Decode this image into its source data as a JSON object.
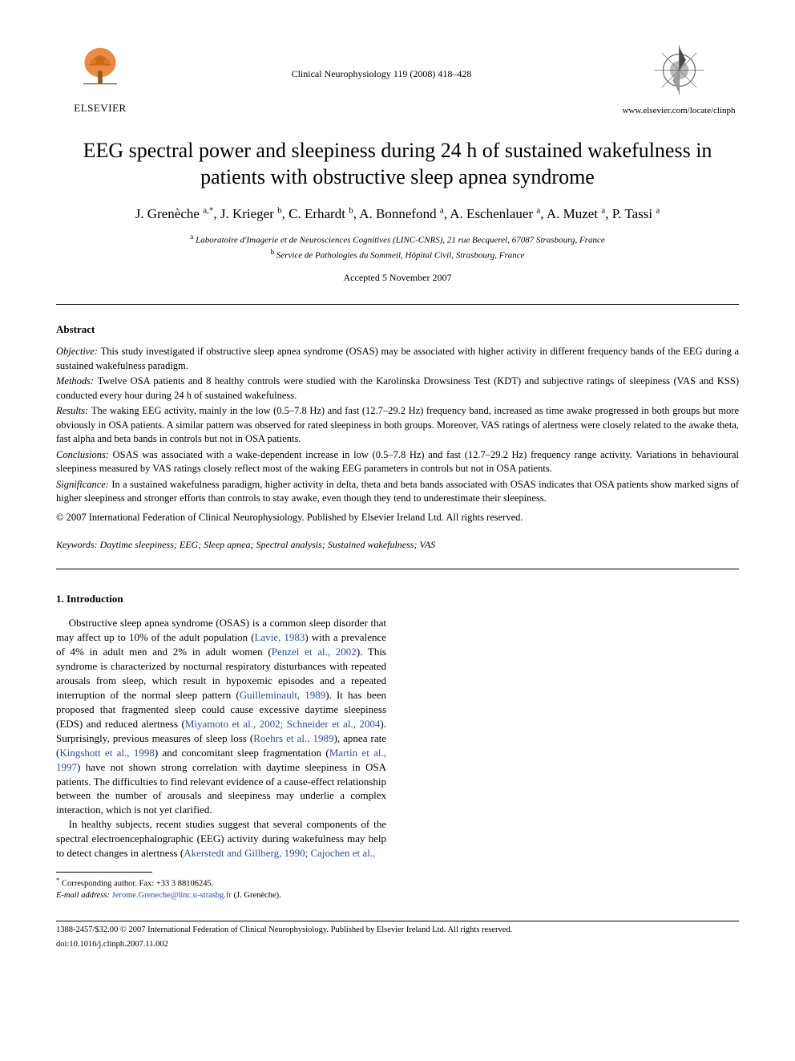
{
  "header": {
    "publisher_name": "ELSEVIER",
    "journal_citation": "Clinical Neurophysiology 119 (2008) 418–428",
    "journal_url": "www.elsevier.com/locate/clinph"
  },
  "title": "EEG spectral power and sleepiness during 24 h of sustained wakefulness in patients with obstructive sleep apnea syndrome",
  "authors_html": "J. Grenèche <sup>a,*</sup>, J. Krieger <sup>b</sup>, C. Erhardt <sup>b</sup>, A. Bonnefond <sup>a</sup>, A. Eschenlauer <sup>a</sup>, A. Muzet <sup>a</sup>, P. Tassi <sup>a</sup>",
  "affiliations": {
    "a": "Laboratoire d'Imagerie et de Neurosciences Cognitives (LINC-CNRS), 21 rue Becquerel, 67087 Strasbourg, France",
    "b": "Service de Pathologies du Sommeil, Hôpital Civil, Strasbourg, France"
  },
  "accepted": "Accepted 5 November 2007",
  "abstract": {
    "heading": "Abstract",
    "objective": "This study investigated if obstructive sleep apnea syndrome (OSAS) may be associated with higher activity in different frequency bands of the EEG during a sustained wakefulness paradigm.",
    "methods": "Twelve OSA patients and 8 healthy controls were studied with the Karolinska Drowsiness Test (KDT) and subjective ratings of sleepiness (VAS and KSS) conducted every hour during 24 h of sustained wakefulness.",
    "results": "The waking EEG activity, mainly in the low (0.5–7.8 Hz) and fast (12.7–29.2 Hz) frequency band, increased as time awake progressed in both groups but more obviously in OSA patients. A similar pattern was observed for rated sleepiness in both groups. Moreover, VAS ratings of alertness were closely related to the awake theta, fast alpha and beta bands in controls but not in OSA patients.",
    "conclusions": "OSAS was associated with a wake-dependent increase in low (0.5–7.8 Hz) and fast (12.7–29.2 Hz) frequency range activity. Variations in behavioural sleepiness measured by VAS ratings closely reflect most of the waking EEG parameters in controls but not in OSA patients.",
    "significance": "In a sustained wakefulness paradigm, higher activity in delta, theta and beta bands associated with OSAS indicates that OSA patients show marked signs of higher sleepiness and stronger efforts than controls to stay awake, even though they tend to underestimate their sleepiness.",
    "copyright": "© 2007 International Federation of Clinical Neurophysiology. Published by Elsevier Ireland Ltd. All rights reserved."
  },
  "keywords": {
    "label": "Keywords:",
    "text": "Daytime sleepiness; EEG; Sleep apnea; Spectral analysis; Sustained wakefulness; VAS"
  },
  "body": {
    "section_number": "1.",
    "section_title": "Introduction",
    "para1_pre": "Obstructive sleep apnea syndrome (OSAS) is a common sleep disorder that may affect up to 10% of the adult population (",
    "ref1": "Lavie, 1983",
    "para1_mid1": ") with a prevalence of 4% in adult men and 2% in adult women (",
    "ref2": "Penzel et al., 2002",
    "para1_mid2": "). This syndrome is characterized by nocturnal respiratory disturbances with repeated arousals from sleep, which result in hypoxemic episodes and a repeated interruption of the normal sleep pattern (",
    "ref3": "Guilleminault, 1989",
    "para1_mid3": "). It has been proposed that fragmented sleep could cause excessive daytime sleepiness (EDS) and reduced alertness (",
    "ref4": "Miyamoto et al., 2002; Schneider et al., 2004",
    "para1_mid4": "). Surprisingly, previous measures of sleep loss (",
    "ref5": "Roehrs et al., 1989",
    "para1_mid5": "), apnea rate (",
    "ref6": "Kingshott et al., 1998",
    "para1_mid6": ") and concomitant sleep fragmentation (",
    "ref7": "Martin et al., 1997",
    "para1_mid7": ") have not shown strong correlation with daytime sleepiness in OSA patients. The difficulties to find relevant evidence of a cause-effect relationship between the number of arousals and sleepiness may underlie a complex interaction, which is not yet clarified.",
    "para2_pre": "In healthy subjects, recent studies suggest that several components of the spectral electroencephalographic (EEG) activity during wakefulness may help to detect changes in alertness (",
    "ref8": "Akerstedt and Gillberg, 1990; Cajochen et al.,"
  },
  "footnote": {
    "corr_label": "Corresponding author. Fax: +33 3 88106245.",
    "email_label": "E-mail address:",
    "email": "Jerome.Greneche@linc.u-strasbg.fr",
    "email_suffix": "(J. Grenèche)."
  },
  "footer": {
    "line1": "1388-2457/$32.00 © 2007 International Federation of Clinical Neurophysiology. Published by Elsevier Ireland Ltd. All rights reserved.",
    "line2": "doi:10.1016/j.clinph.2007.11.002"
  },
  "colors": {
    "text": "#000000",
    "link": "#2850a0",
    "background": "#ffffff",
    "logo_orange": "#e87722",
    "compass_gray": "#6b6b6b"
  }
}
